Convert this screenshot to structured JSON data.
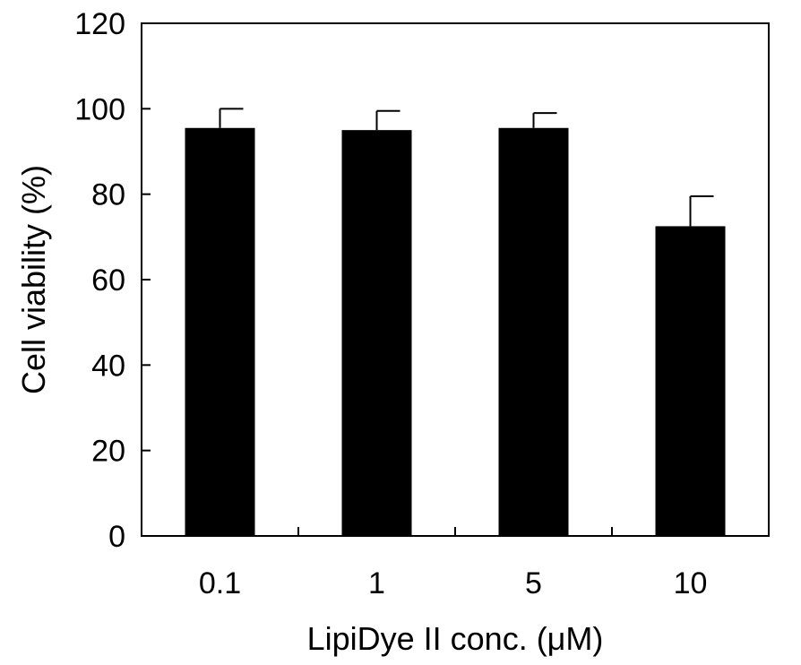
{
  "chart_data": {
    "type": "bar",
    "categories": [
      "0.1",
      "1",
      "5",
      "10"
    ],
    "values": [
      95.5,
      95,
      95.5,
      72.5
    ],
    "error": [
      4.5,
      4.5,
      3.5,
      7
    ],
    "xlabel": "LipiDye II conc. (μM)",
    "ylabel": "Cell viability (%)",
    "ylim": [
      0,
      120
    ],
    "yticks": [
      0,
      20,
      40,
      60,
      80,
      100,
      120
    ],
    "grid": false,
    "legend": "none",
    "bar_color": "#000000",
    "axis_color": "#000000"
  }
}
